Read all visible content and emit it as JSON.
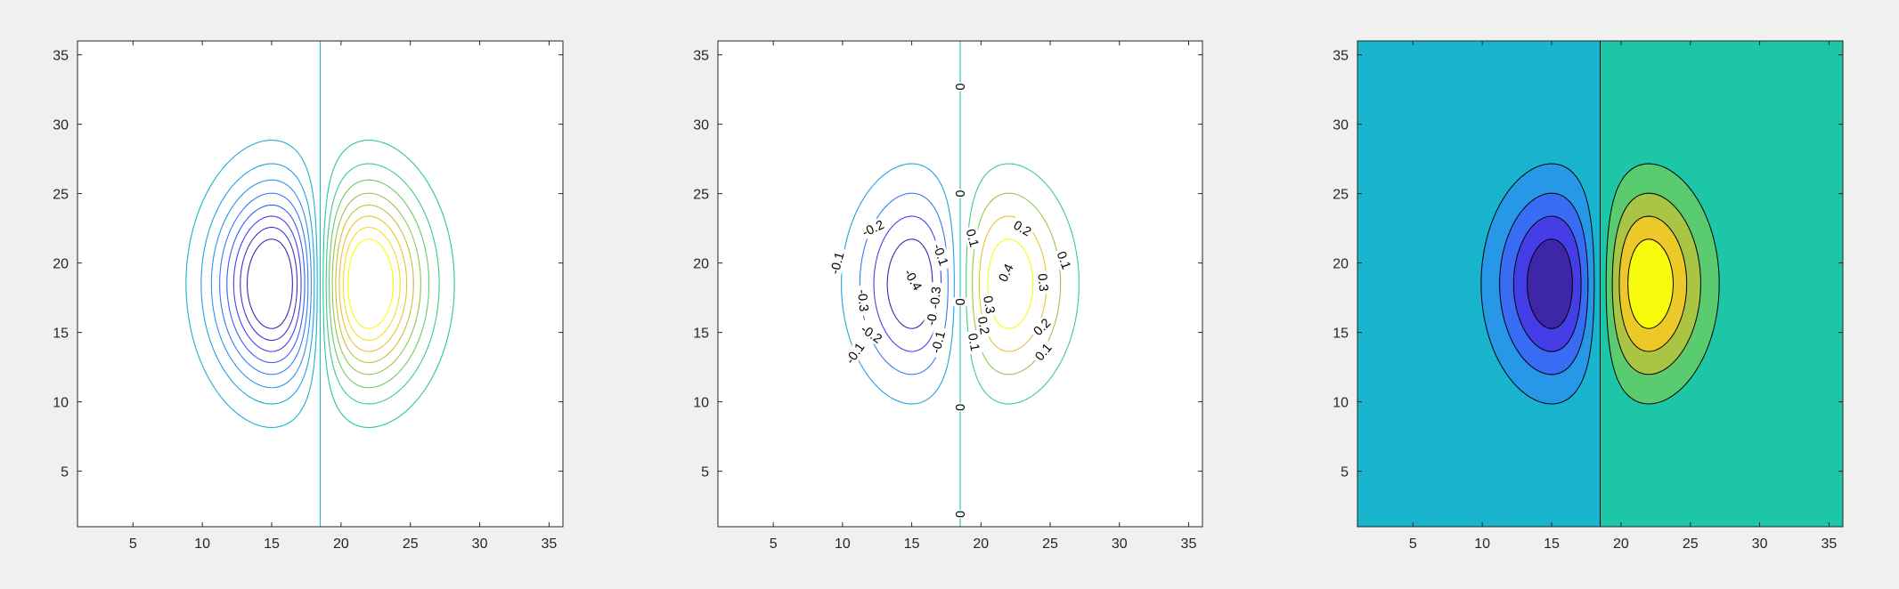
{
  "figure": {
    "background": "#f0f0f0"
  },
  "chart_data": [
    {
      "type": "contour",
      "title": "",
      "xlabel": "",
      "ylabel": "",
      "xlim": [
        1,
        36
      ],
      "ylim": [
        1,
        36
      ],
      "xticks": [
        5,
        10,
        15,
        20,
        25,
        30,
        35
      ],
      "yticks": [
        5,
        10,
        15,
        20,
        25,
        30,
        35
      ],
      "fill": false,
      "background": "#ffffff",
      "field": {
        "x0": 15,
        "y0": 18.5,
        "node": 18.5,
        "sigma_x": 4.9,
        "sigma_y": 6.1,
        "peak_x": 22,
        "amplitude": 0.5
      },
      "levels": [
        -0.4,
        -0.35,
        -0.3,
        -0.25,
        -0.2,
        -0.15,
        -0.1,
        -0.05,
        0,
        0.05,
        0.1,
        0.15,
        0.2,
        0.25,
        0.3,
        0.35,
        0.4
      ],
      "level_labels": []
    },
    {
      "type": "contour",
      "title": "",
      "xlabel": "",
      "ylabel": "",
      "xlim": [
        1,
        36
      ],
      "ylim": [
        1,
        36
      ],
      "xticks": [
        5,
        10,
        15,
        20,
        25,
        30,
        35
      ],
      "yticks": [
        5,
        10,
        15,
        20,
        25,
        30,
        35
      ],
      "fill": false,
      "background": "#ffffff",
      "field": {
        "x0": 15,
        "y0": 18.5,
        "node": 18.5,
        "sigma_x": 4.9,
        "sigma_y": 6.1,
        "peak_x": 22,
        "amplitude": 0.5
      },
      "levels": [
        -0.4,
        -0.3,
        -0.2,
        -0.1,
        0,
        0.1,
        0.2,
        0.3,
        0.4
      ],
      "level_labels": [
        {
          "text": "0",
          "x": 18.5,
          "y": 32.7,
          "angle": -90
        },
        {
          "text": "0",
          "x": 18.5,
          "y": 25,
          "angle": -90
        },
        {
          "text": "0",
          "x": 18.5,
          "y": 17.2,
          "angle": -90
        },
        {
          "text": "0",
          "x": 18.5,
          "y": 9.6,
          "angle": -90
        },
        {
          "text": "0",
          "x": 18.5,
          "y": 1.9,
          "angle": -90
        },
        {
          "text": "-0.1",
          "x": 9.6,
          "y": 20,
          "angle": -75
        },
        {
          "text": "-0.1",
          "x": 10.9,
          "y": 13.5,
          "angle": -55
        },
        {
          "text": "-0.1",
          "x": 17.1,
          "y": 20.6,
          "angle": 70
        },
        {
          "text": "-0.1",
          "x": 16.9,
          "y": 14.3,
          "angle": -75
        },
        {
          "text": "-0.2",
          "x": 12.2,
          "y": 22.5,
          "angle": -25
        },
        {
          "text": "-0.2",
          "x": 12.1,
          "y": 14.9,
          "angle": 35
        },
        {
          "text": "-0.2",
          "x": 16.5,
          "y": 16.3,
          "angle": -80
        },
        {
          "text": "-0.3",
          "x": 11.5,
          "y": 17.3,
          "angle": 85
        },
        {
          "text": "-0.3",
          "x": 16.7,
          "y": 17.5,
          "angle": -85
        },
        {
          "text": "-0.4",
          "x": 15.1,
          "y": 18.8,
          "angle": 60
        },
        {
          "text": "0.1",
          "x": 19.4,
          "y": 21.8,
          "angle": 75
        },
        {
          "text": "0.1",
          "x": 26,
          "y": 20.2,
          "angle": 70
        },
        {
          "text": "0.1",
          "x": 19.5,
          "y": 14.3,
          "angle": 80
        },
        {
          "text": "0.1",
          "x": 24.5,
          "y": 13.6,
          "angle": -50
        },
        {
          "text": "0.2",
          "x": 23,
          "y": 22.5,
          "angle": 30
        },
        {
          "text": "0.2",
          "x": 20.2,
          "y": 15.5,
          "angle": 80
        },
        {
          "text": "0.2",
          "x": 24.4,
          "y": 15.4,
          "angle": -45
        },
        {
          "text": "0.3",
          "x": 24.5,
          "y": 18.6,
          "angle": 85
        },
        {
          "text": "0.3",
          "x": 20.6,
          "y": 17,
          "angle": 80
        },
        {
          "text": "0.4",
          "x": 21.8,
          "y": 19.3,
          "angle": -65
        }
      ]
    },
    {
      "type": "contourf",
      "title": "",
      "xlabel": "",
      "ylabel": "",
      "xlim": [
        1,
        36
      ],
      "ylim": [
        1,
        36
      ],
      "xticks": [
        5,
        10,
        15,
        20,
        25,
        30,
        35
      ],
      "yticks": [
        5,
        10,
        15,
        20,
        25,
        30,
        35
      ],
      "fill": true,
      "field": {
        "x0": 15,
        "y0": 18.5,
        "node": 18.5,
        "sigma_x": 4.9,
        "sigma_y": 6.1,
        "peak_x": 22,
        "amplitude": 0.5
      },
      "levels": [
        -0.4,
        -0.3,
        -0.2,
        -0.1,
        0,
        0.1,
        0.2,
        0.3,
        0.4
      ],
      "level_labels": []
    }
  ],
  "colormap": [
    "#3e26a8",
    "#4743f8",
    "#2d8cf2",
    "#18b1d2",
    "#1fc9a3",
    "#78cc53",
    "#e8ba31",
    "#f9fb0e"
  ]
}
